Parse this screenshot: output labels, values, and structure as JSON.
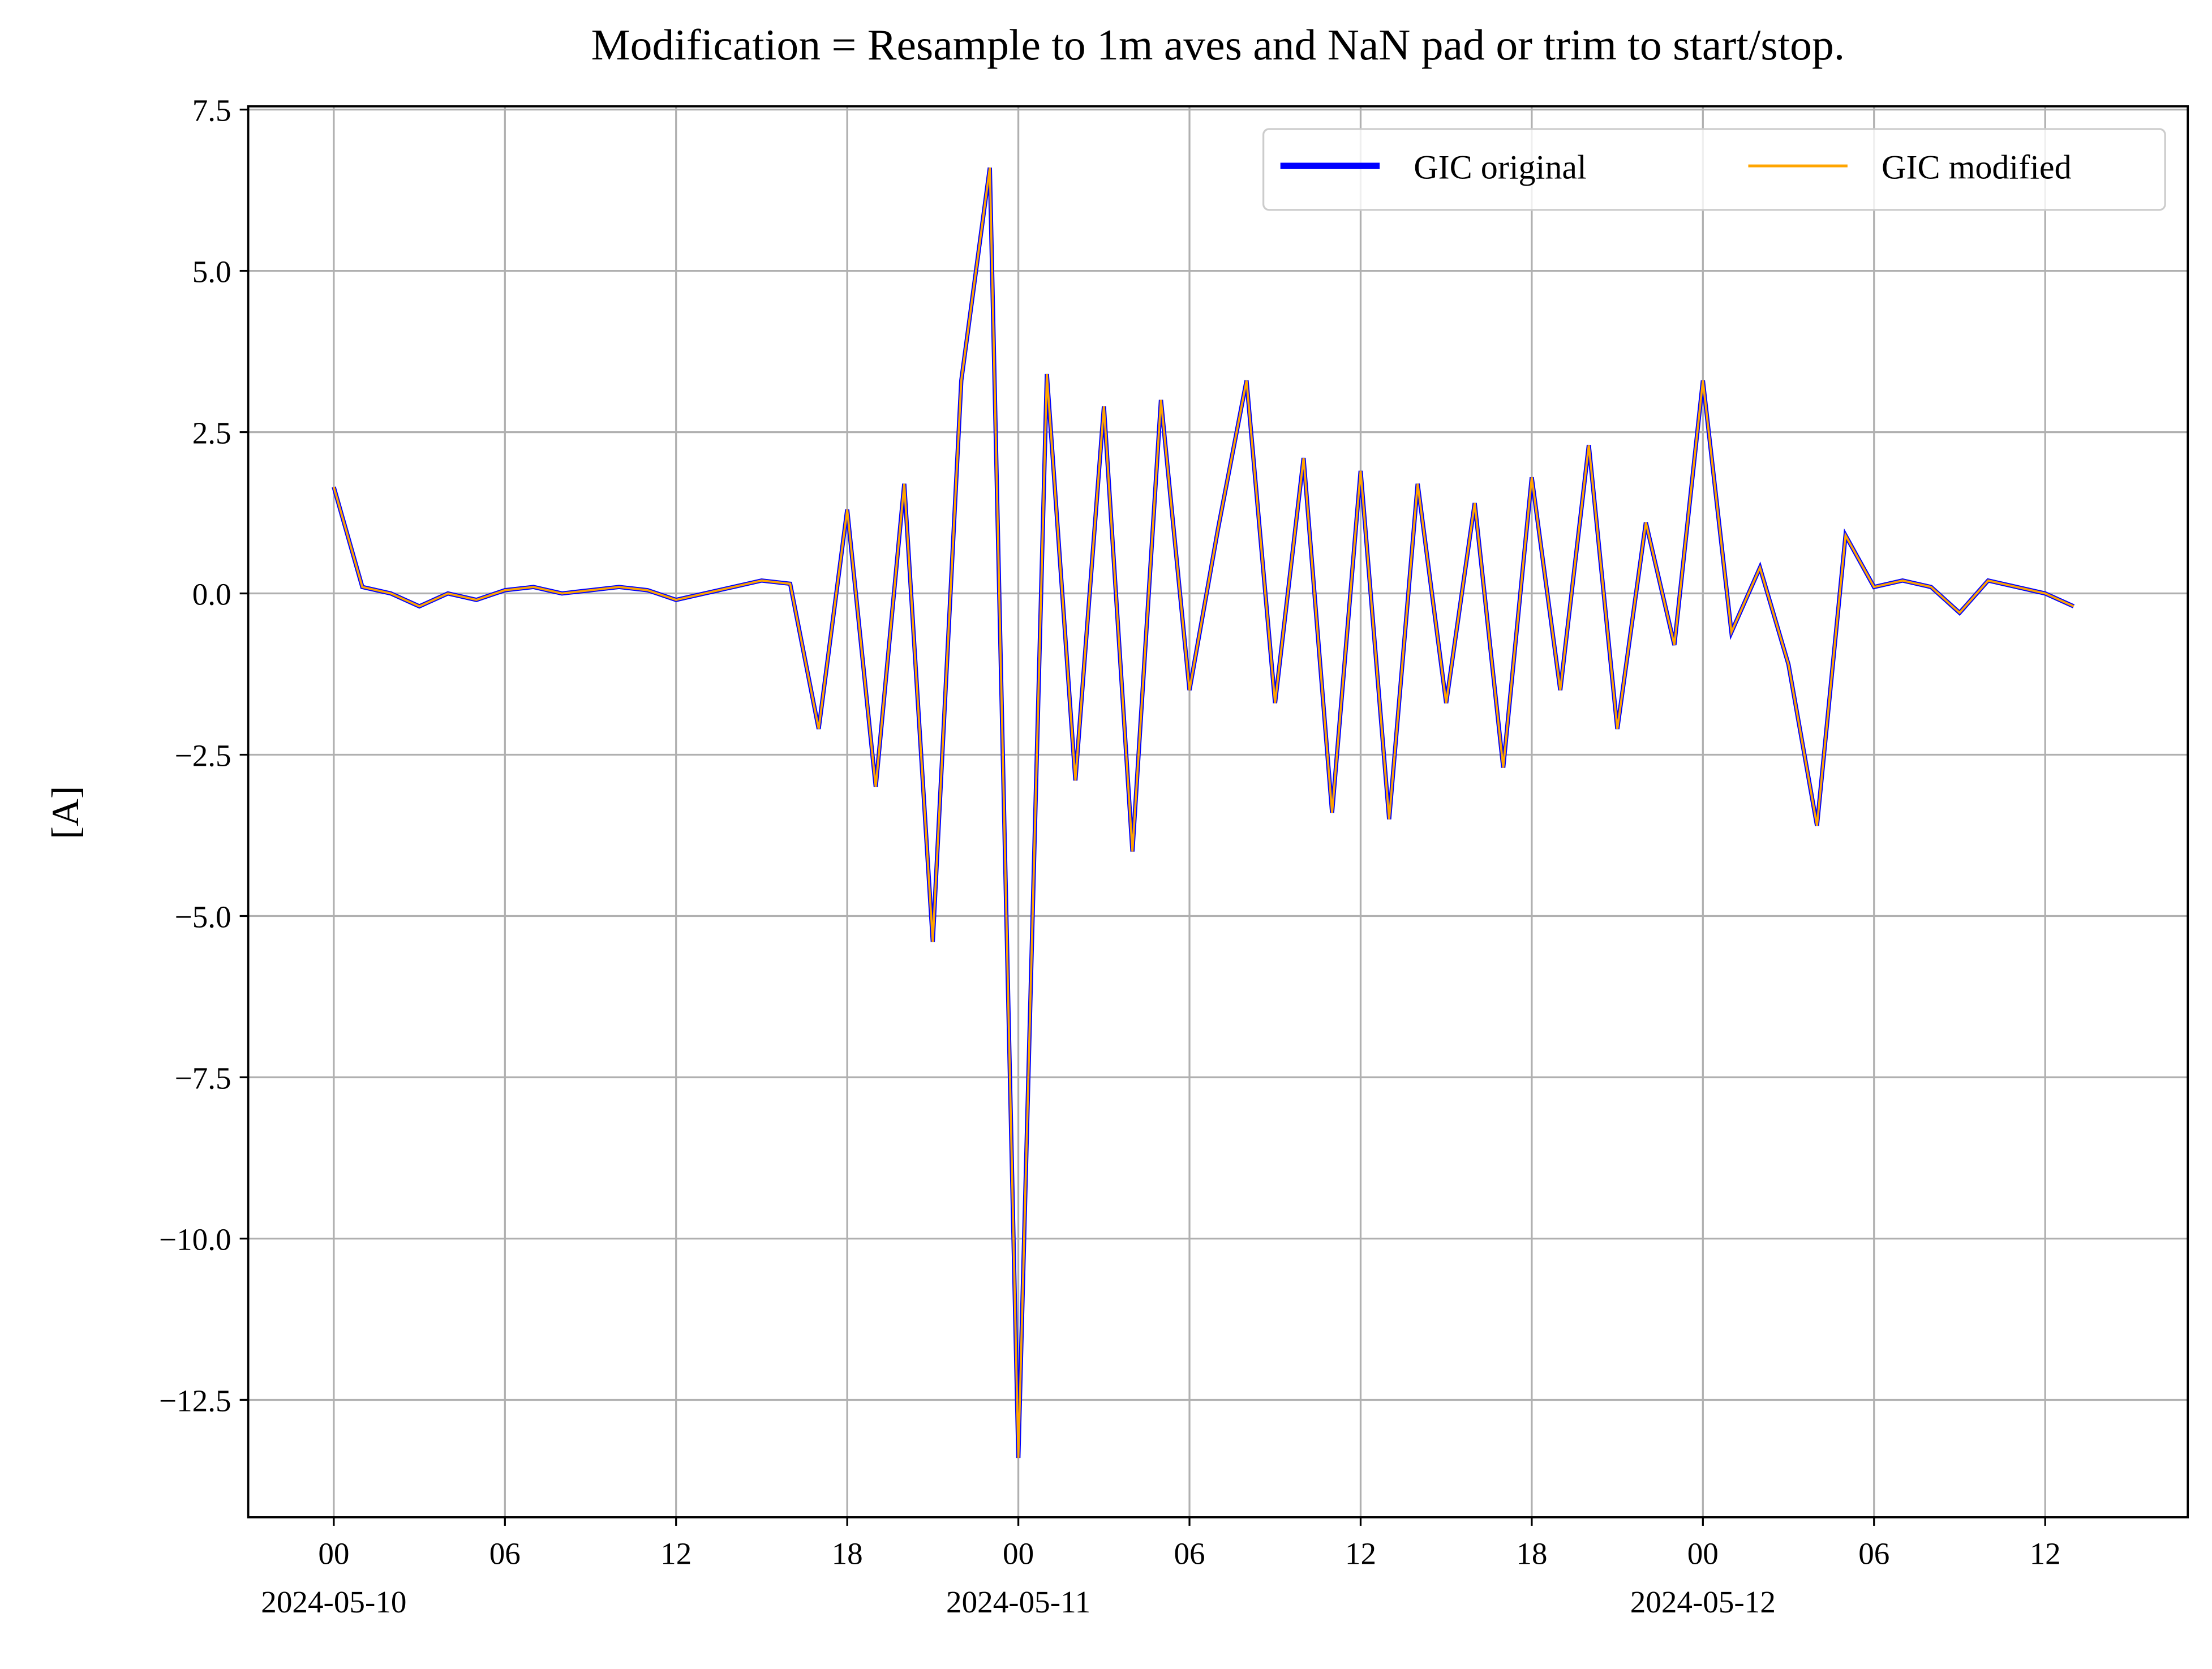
{
  "chart_data": {
    "type": "line",
    "title": "Modification = Resample to 1m aves and NaN pad or trim to start/stop.",
    "ylabel": "[A]",
    "x": [
      "2024-05-10T00",
      "2024-05-10T01",
      "2024-05-10T02",
      "2024-05-10T03",
      "2024-05-10T04",
      "2024-05-10T05",
      "2024-05-10T06",
      "2024-05-10T07",
      "2024-05-10T08",
      "2024-05-10T09",
      "2024-05-10T10",
      "2024-05-10T11",
      "2024-05-10T12",
      "2024-05-10T13",
      "2024-05-10T14",
      "2024-05-10T15",
      "2024-05-10T16",
      "2024-05-10T17",
      "2024-05-10T18",
      "2024-05-10T19",
      "2024-05-10T20",
      "2024-05-10T21",
      "2024-05-10T22",
      "2024-05-10T23",
      "2024-05-11T00",
      "2024-05-11T01",
      "2024-05-11T02",
      "2024-05-11T03",
      "2024-05-11T04",
      "2024-05-11T05",
      "2024-05-11T06",
      "2024-05-11T07",
      "2024-05-11T08",
      "2024-05-11T09",
      "2024-05-11T10",
      "2024-05-11T11",
      "2024-05-11T12",
      "2024-05-11T13",
      "2024-05-11T14",
      "2024-05-11T15",
      "2024-05-11T16",
      "2024-05-11T17",
      "2024-05-11T18",
      "2024-05-11T19",
      "2024-05-11T20",
      "2024-05-11T21",
      "2024-05-11T22",
      "2024-05-11T23",
      "2024-05-12T00",
      "2024-05-12T01",
      "2024-05-12T02",
      "2024-05-12T03",
      "2024-05-12T04",
      "2024-05-12T05",
      "2024-05-12T06",
      "2024-05-12T07",
      "2024-05-12T08",
      "2024-05-12T09",
      "2024-05-12T10",
      "2024-05-12T11",
      "2024-05-12T12",
      "2024-05-12T13"
    ],
    "series": [
      {
        "name": "GIC original",
        "color": "#0000ff",
        "values": [
          1.65,
          0.1,
          0.0,
          -0.2,
          0.0,
          -0.1,
          0.05,
          0.1,
          0.0,
          0.05,
          0.1,
          0.05,
          -0.1,
          0.0,
          0.1,
          0.2,
          0.15,
          -2.1,
          1.3,
          -3.0,
          1.7,
          -5.4,
          3.3,
          6.6,
          -13.4,
          3.4,
          -2.9,
          2.9,
          -4.0,
          3.0,
          -1.5,
          1.0,
          3.3,
          -1.7,
          2.1,
          -3.4,
          1.9,
          -3.5,
          1.7,
          -1.7,
          1.4,
          -2.7,
          1.8,
          -1.5,
          2.3,
          -2.1,
          1.1,
          -0.8,
          3.3,
          -0.6,
          0.4,
          -1.1,
          -3.6,
          0.9,
          0.1,
          0.2,
          0.1,
          -0.3,
          0.2,
          0.1,
          0.0,
          -0.2
        ]
      },
      {
        "name": "GIC modified",
        "color": "#ffa500",
        "values": [
          1.65,
          0.1,
          0.0,
          -0.2,
          0.0,
          -0.1,
          0.05,
          0.1,
          0.0,
          0.05,
          0.1,
          0.05,
          -0.1,
          0.0,
          0.1,
          0.2,
          0.15,
          -2.1,
          1.3,
          -3.0,
          1.7,
          -5.4,
          3.3,
          6.6,
          -13.4,
          3.4,
          -2.9,
          2.9,
          -4.0,
          3.0,
          -1.5,
          1.0,
          3.3,
          -1.7,
          2.1,
          -3.4,
          1.9,
          -3.5,
          1.7,
          -1.7,
          1.4,
          -2.7,
          1.8,
          -1.5,
          2.3,
          -2.1,
          1.1,
          -0.8,
          3.3,
          -0.6,
          0.4,
          -1.1,
          -3.6,
          0.9,
          0.1,
          0.2,
          0.1,
          -0.3,
          0.2,
          0.1,
          0.0,
          -0.2
        ]
      }
    ],
    "xlim": [
      "2024-05-09T21",
      "2024-05-12T17"
    ],
    "xticks": [
      {
        "value": "2024-05-10T00",
        "label": "00"
      },
      {
        "value": "2024-05-10T06",
        "label": "06"
      },
      {
        "value": "2024-05-10T12",
        "label": "12"
      },
      {
        "value": "2024-05-10T18",
        "label": "18"
      },
      {
        "value": "2024-05-11T00",
        "label": "00"
      },
      {
        "value": "2024-05-11T06",
        "label": "06"
      },
      {
        "value": "2024-05-11T12",
        "label": "12"
      },
      {
        "value": "2024-05-11T18",
        "label": "18"
      },
      {
        "value": "2024-05-12T00",
        "label": "00"
      },
      {
        "value": "2024-05-12T06",
        "label": "06"
      },
      {
        "value": "2024-05-12T12",
        "label": "12"
      }
    ],
    "x_date_labels": [
      {
        "value": "2024-05-10T00",
        "label": "2024-05-10"
      },
      {
        "value": "2024-05-11T00",
        "label": "2024-05-11"
      },
      {
        "value": "2024-05-12T00",
        "label": "2024-05-12"
      }
    ],
    "ylim": [
      -14.32,
      7.55
    ],
    "yticks": [
      7.5,
      {
        "value": 5,
        "label": "5.0"
      },
      2.5,
      {
        "value": 0,
        "label": "0.0"
      },
      {
        "value": -2.5,
        "label": "−2.5"
      },
      {
        "value": -5,
        "label": "−5.0"
      },
      {
        "value": -7.5,
        "label": "−7.5"
      },
      {
        "value": -10,
        "label": "−10.0"
      },
      {
        "value": -12.5,
        "label": "−12.5"
      }
    ],
    "grid": true,
    "legend": "upper right"
  }
}
